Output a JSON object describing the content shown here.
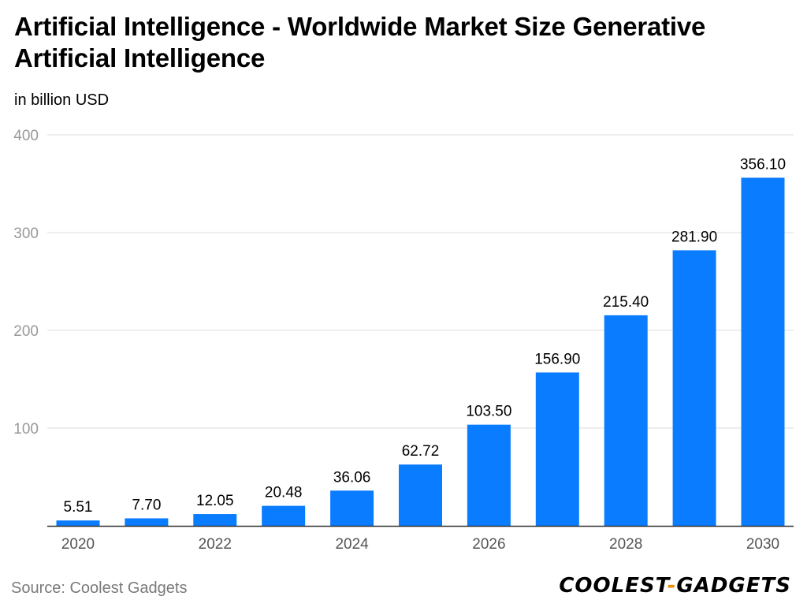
{
  "title": "Artificial Intelligence - Worldwide Market Size Generative Artificial Intelligence",
  "subtitle": "in billion USD",
  "source": "Source: Coolest Gadgets",
  "brand": {
    "part1": "COOLEST",
    "dash": "-",
    "part2": "GADGETS"
  },
  "colors": {
    "bar": "#0a7cff",
    "grid": "#dddddd",
    "axis": "#333333",
    "tick_label": "#999999",
    "x_label": "#555555",
    "value_label": "#000000"
  },
  "chart_data": {
    "type": "bar",
    "title": "Artificial Intelligence - Worldwide Market Size Generative Artificial Intelligence",
    "ylabel": "in billion USD",
    "xlabel": "",
    "categories": [
      "2020",
      "2021",
      "2022",
      "2023",
      "2024",
      "2025",
      "2026",
      "2027",
      "2028",
      "2029",
      "2030"
    ],
    "values": [
      5.51,
      7.7,
      12.05,
      20.48,
      36.06,
      62.72,
      103.5,
      156.9,
      215.4,
      281.9,
      356.1
    ],
    "value_labels": [
      "5.51",
      "7.70",
      "12.05",
      "20.48",
      "36.06",
      "62.72",
      "103.50",
      "156.90",
      "215.40",
      "281.90",
      "356.10"
    ],
    "x_tick_labels": [
      "2020",
      "",
      "2022",
      "",
      "2024",
      "",
      "2026",
      "",
      "2028",
      "",
      "2030"
    ],
    "y_ticks": [
      100,
      200,
      300,
      400
    ],
    "y_tick_labels": [
      "100",
      "200",
      "300",
      "400"
    ],
    "ylim": [
      0,
      400
    ],
    "grid": true,
    "legend": "none"
  }
}
